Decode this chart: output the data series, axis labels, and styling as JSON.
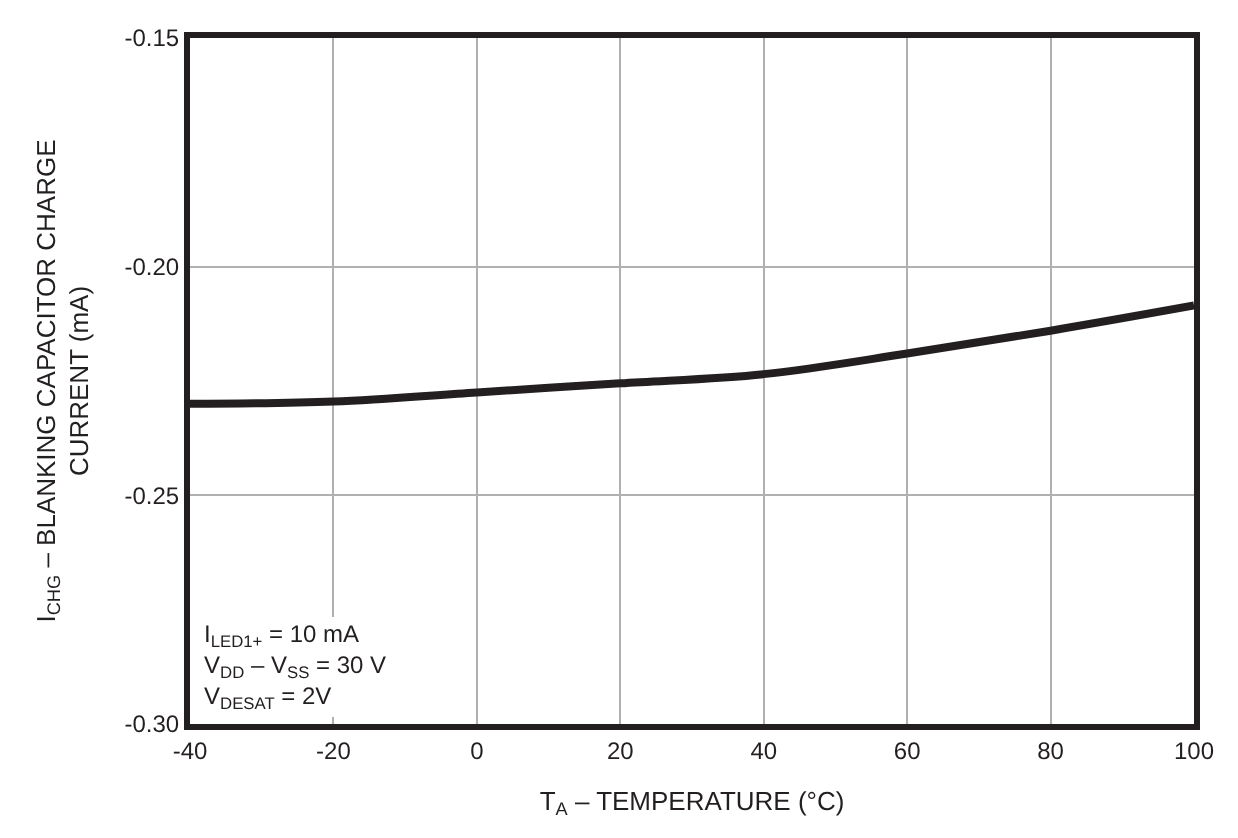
{
  "chart_data": {
    "type": "line",
    "x": [
      -40,
      -20,
      0,
      20,
      40,
      60,
      80,
      100
    ],
    "series": [
      {
        "color": "#231f20",
        "values": [
          -0.23,
          -0.2295,
          -0.2275,
          -0.2255,
          -0.2235,
          -0.219,
          -0.214,
          -0.2085
        ]
      }
    ],
    "xlim": [
      -40,
      100
    ],
    "xticks": [
      -40,
      -20,
      0,
      20,
      40,
      60,
      80,
      100
    ],
    "ylim": [
      -0.3,
      -0.15
    ],
    "yticks": [
      {
        "value": -0.3,
        "label": "-0.30"
      },
      {
        "value": -0.25,
        "label": "-0.25"
      },
      {
        "value": -0.2,
        "label": "-0.20"
      },
      {
        "value": -0.15,
        "label": "-0.15"
      }
    ],
    "xlabel": "T$_{A}$ – TEMPERATURE (°C)",
    "ylabel": "I$_{CHG}$ – BLANKING CAPACITOR CHARGE\nCURRENT (mA)",
    "annotations": [
      "I$_{LED1+}$ = 10 mA\nV$_{DD}$ – V$_{SS}$ = 30 V\nV$_{DESAT}$ = 2V"
    ],
    "grid": true,
    "marker": "none",
    "line_style": "solid"
  }
}
